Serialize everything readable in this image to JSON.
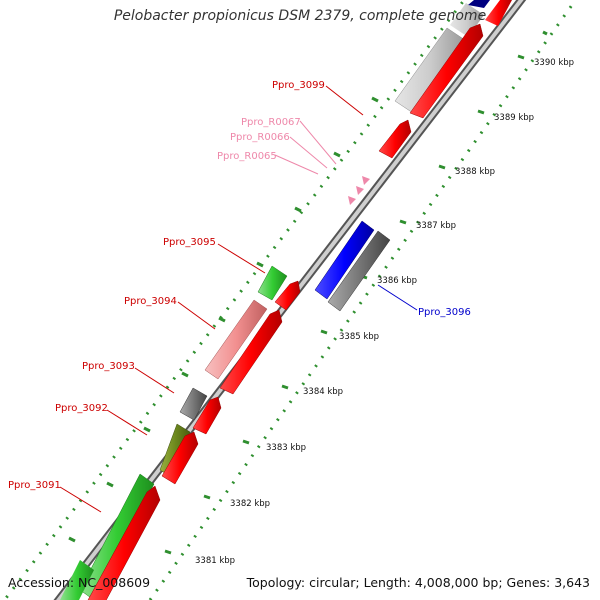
{
  "title": "Pelobacter propionicus DSM 2379, complete genome",
  "accession": "Accession: NC_008609",
  "topology": "Topology: circular; Length: 4,008,000 bp; Genes: 3,643",
  "ticks": [
    "3390 kbp",
    "3389 kbp",
    "3388 kbp",
    "3387 kbp",
    "3386 kbp",
    "3385 kbp",
    "3384 kbp",
    "3383 kbp",
    "3382 kbp",
    "3381 kbp"
  ],
  "genes": [
    {
      "label": "Ppro_3099",
      "color": "#cc0000"
    },
    {
      "label": "Ppro_R0067",
      "color": "#ee88aa"
    },
    {
      "label": "Ppro_R0066",
      "color": "#ee88aa"
    },
    {
      "label": "Ppro_R0065",
      "color": "#ee88aa"
    },
    {
      "label": "Ppro_3095",
      "color": "#cc0000"
    },
    {
      "label": "Ppro_3094",
      "color": "#cc0000"
    },
    {
      "label": "Ppro_3093",
      "color": "#cc0000"
    },
    {
      "label": "Ppro_3092",
      "color": "#cc0000"
    },
    {
      "label": "Ppro_3091",
      "color": "#cc0000"
    },
    {
      "label": "Ppro_3096",
      "color": "#0000cc"
    }
  ]
}
